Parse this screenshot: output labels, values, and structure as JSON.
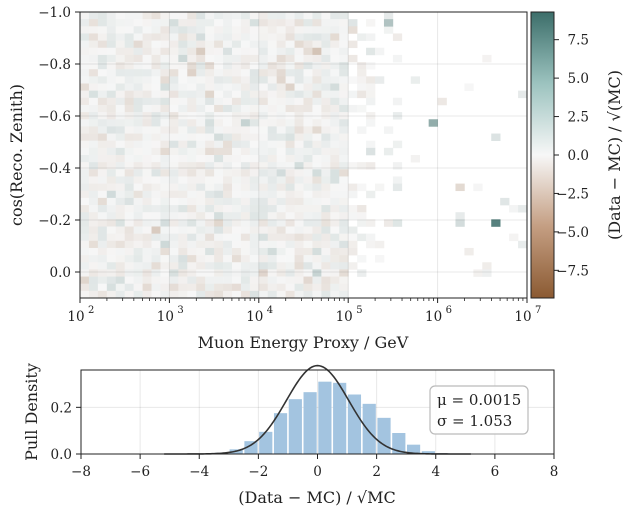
{
  "chart_data": [
    {
      "type": "heatmap",
      "title": "",
      "xlabel": "Muon Energy Proxy / GeV",
      "ylabel": "cos(Reco. Zenith)",
      "x_scale": "log",
      "xlim": [
        100,
        10000000
      ],
      "ylim": [
        0.1,
        -1.0
      ],
      "y_inverted": true,
      "x_tick_labels": [
        "10",
        "10",
        "10",
        "10",
        "10",
        "10"
      ],
      "x_tick_exponents": [
        "2",
        "3",
        "4",
        "5",
        "6",
        "7"
      ],
      "y_tick_labels": [
        "−1.0",
        "−0.8",
        "−0.6",
        "−0.4",
        "−0.2",
        "0.0"
      ],
      "y_ticks": [
        -1.0,
        -0.8,
        -0.6,
        -0.4,
        -0.2,
        0.0
      ],
      "bins_x": 50,
      "bins_y": 40,
      "colormap": "diverging brown-white-teal",
      "colors": {
        "negative": "#8b5a32",
        "zero": "#f7f7f7",
        "positive": "#3c6e6a"
      },
      "colorbar": {
        "label": "(Data − MC) / √(MC)",
        "range": [
          -9.3,
          9.3
        ],
        "tick_labels": [
          "7.5",
          "5.0",
          "2.5",
          "0.0",
          "−2.5",
          "−5.0",
          "−7.5"
        ],
        "ticks": [
          7.5,
          5.0,
          2.5,
          0.0,
          -2.5,
          -5.0,
          -7.5
        ]
      },
      "outlier_cells": [
        {
          "energy_gev": 4500000,
          "cos_zenith": -0.19,
          "value": 8.0
        },
        {
          "energy_gev": 900000,
          "cos_zenith": -0.56,
          "value": 5.0
        },
        {
          "energy_gev": 300000,
          "cos_zenith": -0.97,
          "value": 3.5
        },
        {
          "energy_gev": 1800000,
          "cos_zenith": -0.2,
          "value": 1.8
        }
      ]
    },
    {
      "type": "bar",
      "title": "",
      "xlabel": "(Data − MC) / √MC",
      "ylabel": "Pull Density",
      "xlim": [
        -8,
        8
      ],
      "ylim": [
        0,
        0.36
      ],
      "x_tick_labels": [
        "−8",
        "−6",
        "−4",
        "−2",
        "0",
        "2",
        "4",
        "6",
        "8"
      ],
      "x_ticks": [
        -8,
        -6,
        -4,
        -2,
        0,
        2,
        4,
        6,
        8
      ],
      "y_tick_labels": [
        "0.0",
        "0.2"
      ],
      "y_ticks": [
        0.0,
        0.2
      ],
      "bin_edges": [
        -3.5,
        -3.0,
        -2.5,
        -2.0,
        -1.5,
        -1.0,
        -0.5,
        0.0,
        0.5,
        1.0,
        1.5,
        2.0,
        2.5,
        3.0,
        3.5,
        4.0,
        4.5
      ],
      "values": [
        0.005,
        0.02,
        0.055,
        0.095,
        0.175,
        0.235,
        0.265,
        0.31,
        0.305,
        0.255,
        0.215,
        0.155,
        0.09,
        0.04,
        0.012,
        0.003
      ],
      "bar_color": "#a3c4e0",
      "fit": {
        "type": "gaussian",
        "mu": 0.0015,
        "sigma": 1.053,
        "color": "#333333"
      },
      "legend_position": "top-right",
      "stats": {
        "mu_label": "μ = 0.0015",
        "sigma_label": "σ = 1.053"
      }
    }
  ]
}
